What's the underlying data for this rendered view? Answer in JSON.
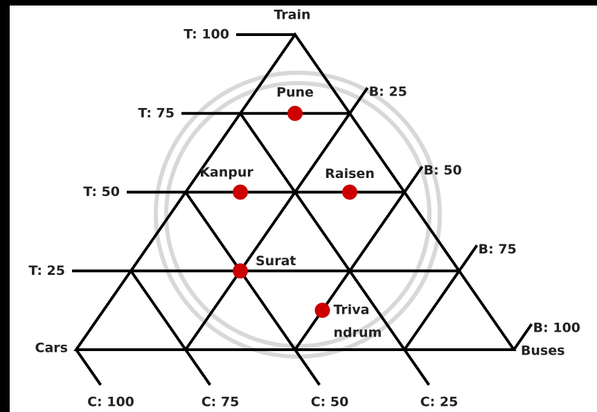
{
  "chart_data": {
    "type": "ternary",
    "axes": {
      "t": "Train",
      "c": "Cars",
      "b": "Buses"
    },
    "tticks": [
      {
        "value": 25,
        "label": "T: 25"
      },
      {
        "value": 50,
        "label": "T: 50"
      },
      {
        "value": 75,
        "label": "T: 75"
      },
      {
        "value": 100,
        "label": "T: 100"
      }
    ],
    "bticks": [
      {
        "value": 25,
        "label": "B: 25"
      },
      {
        "value": 50,
        "label": "B: 50"
      },
      {
        "value": 75,
        "label": "B: 75"
      },
      {
        "value": 100,
        "label": "B: 100"
      }
    ],
    "cticks": [
      {
        "value": 100,
        "label": "C: 100"
      },
      {
        "value": 75,
        "label": "C: 75"
      },
      {
        "value": 50,
        "label": "C: 50"
      },
      {
        "value": 25,
        "label": "C: 25"
      }
    ],
    "color": "#cc0000",
    "points": [
      {
        "label": [
          "Pune"
        ],
        "t": 75,
        "b": 12.5,
        "c": 12.5
      },
      {
        "label": [
          "Kanpur"
        ],
        "t": 50,
        "b": 12.5,
        "c": 37.5
      },
      {
        "label": [
          "Raisen"
        ],
        "t": 50,
        "b": 37.5,
        "c": 12.5
      },
      {
        "label": [
          "Surat"
        ],
        "t": 25,
        "b": 25,
        "c": 50
      },
      {
        "label": [
          "Triva",
          "ndrum"
        ],
        "t": 12.5,
        "b": 50,
        "c": 37.5
      }
    ]
  }
}
